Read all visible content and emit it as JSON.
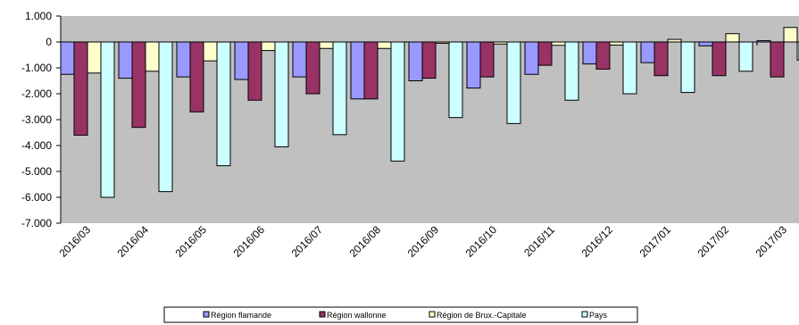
{
  "colors": {
    "plot_background": "#c0c0c0",
    "Région flamande": "#9999ff",
    "Région wallonne": "#993366",
    "Région de Brux.-Capitale": "#ffffcc",
    "Pays": "#ccffff"
  },
  "chart_data": {
    "type": "bar",
    "title": "",
    "xlabel": "",
    "ylabel": "",
    "ylim": [
      -7000,
      1000
    ],
    "yticks": [
      1000,
      0,
      -1000,
      -2000,
      -3000,
      -4000,
      -5000,
      -6000,
      -7000
    ],
    "ytick_labels": [
      "1.000",
      "0",
      "-1.000",
      "-2.000",
      "-3.000",
      "-4.000",
      "-5.000",
      "-6.000",
      "-7.000"
    ],
    "grid": false,
    "legend_position": "bottom",
    "categories": [
      "2016/03",
      "2016/04",
      "2016/05",
      "2016/06",
      "2016/07",
      "2016/08",
      "2016/09",
      "2016/10",
      "2016/11",
      "2016/12",
      "2017/01",
      "2017/02",
      "2017/03"
    ],
    "series": [
      {
        "name": "Région flamande",
        "values": [
          -1250,
          -1400,
          -1350,
          -1450,
          -1350,
          -2200,
          -1500,
          -1780,
          -1250,
          -850,
          -800,
          -150,
          50
        ]
      },
      {
        "name": "Région wallonne",
        "values": [
          -3600,
          -3300,
          -2700,
          -2250,
          -2000,
          -2200,
          -1400,
          -1350,
          -900,
          -1050,
          -1300,
          -1300,
          -1350
        ]
      },
      {
        "name": "Région de Brux.-Capitale",
        "values": [
          -1200,
          -1130,
          -730,
          -330,
          -250,
          -250,
          -50,
          -80,
          -130,
          -120,
          100,
          320,
          560
        ]
      },
      {
        "name": "Pays",
        "values": [
          -6000,
          -5780,
          -4780,
          -4050,
          -3580,
          -4600,
          -2920,
          -3150,
          -2250,
          -2000,
          -1950,
          -1130,
          -700
        ]
      }
    ]
  }
}
